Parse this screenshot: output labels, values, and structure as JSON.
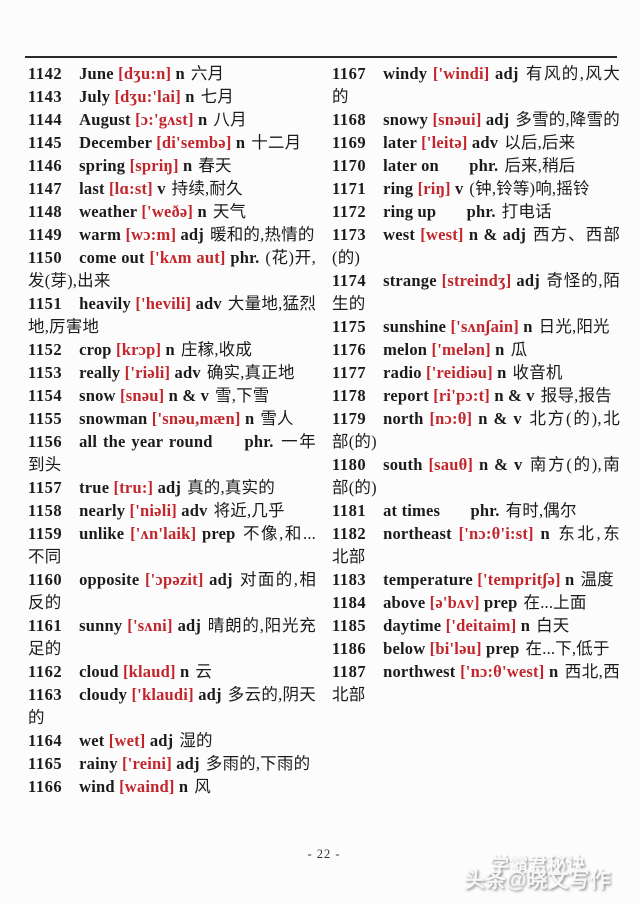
{
  "page": {
    "number_label": "- 22 -",
    "watermark_top": "学霸君秘诀",
    "watermark_bottom": "头条@晓文写作"
  },
  "colors": {
    "phonetic_red": "#c2262c",
    "text_black": "#1b1b1b",
    "rule_black": "#2b2b2b"
  },
  "columns": {
    "left": [
      {
        "num": "1142",
        "word": "June",
        "phon": "[dʒu:n]",
        "pos": "n",
        "def": "六月"
      },
      {
        "num": "1143",
        "word": "July",
        "phon": "[dʒu:'lai]",
        "pos": "n",
        "def": "七月"
      },
      {
        "num": "1144",
        "word": "August",
        "phon": "[ɔ:'gʌst]",
        "pos": "n",
        "def": "八月"
      },
      {
        "num": "1145",
        "word": "December",
        "phon": "[di'sembə]",
        "pos": "n",
        "def": "十二月"
      },
      {
        "num": "1146",
        "word": "spring",
        "phon": "[spriŋ]",
        "pos": "n",
        "def": "春天"
      },
      {
        "num": "1147",
        "word": "last",
        "phon": "[lɑ:st]",
        "pos": "v",
        "def": "持续,耐久"
      },
      {
        "num": "1148",
        "word": "weather",
        "phon": "['weðə]",
        "pos": "n",
        "def": "天气"
      },
      {
        "num": "1149",
        "word": "warm",
        "phon": "[wɔ:m]",
        "pos": "adj",
        "def": "暖和的,热情的"
      },
      {
        "num": "1150",
        "word": "come out",
        "phon": "['kʌm aut]",
        "pos": "phr.",
        "def": "(花)开,发(芽),出来"
      },
      {
        "num": "1151",
        "word": "heavily",
        "phon": "['hevili]",
        "pos": "adv",
        "def": "大量地,猛烈地,厉害地"
      },
      {
        "num": "1152",
        "word": "crop",
        "phon": "[krɔp]",
        "pos": "n",
        "def": "庄稼,收成"
      },
      {
        "num": "1153",
        "word": "really",
        "phon": "['riəli]",
        "pos": "adv",
        "def": "确实,真正地"
      },
      {
        "num": "1154",
        "word": "snow",
        "phon": "[snəu]",
        "pos": "n & v",
        "def": "雪,下雪"
      },
      {
        "num": "1155",
        "word": "snowman",
        "phon": "['snəu,mæn]",
        "pos": "n",
        "def": "雪人"
      },
      {
        "num": "1156",
        "word": "all the year round",
        "phon": "",
        "pos": "phr.",
        "def": "一年到头"
      },
      {
        "num": "1157",
        "word": "true",
        "phon": "[tru:]",
        "pos": "adj",
        "def": "真的,真实的"
      },
      {
        "num": "1158",
        "word": "nearly",
        "phon": "['niəli]",
        "pos": "adv",
        "def": "将近,几乎"
      },
      {
        "num": "1159",
        "word": "unlike",
        "phon": "['ʌn'laik]",
        "pos": "prep",
        "def": "不像,和...不同"
      },
      {
        "num": "1160",
        "word": "opposite",
        "phon": "['ɔpəzit]",
        "pos": "adj",
        "def": "对面的,相反的"
      },
      {
        "num": "1161",
        "word": "sunny",
        "phon": "['sʌni]",
        "pos": "adj",
        "def": "晴朗的,阳光充足的"
      },
      {
        "num": "1162",
        "word": "cloud",
        "phon": "[klaud]",
        "pos": "n",
        "def": "云"
      },
      {
        "num": "1163",
        "word": "cloudy",
        "phon": "['klaudi]",
        "pos": "adj",
        "def": "多云的,阴天的"
      },
      {
        "num": "1164",
        "word": "wet",
        "phon": "[wet]",
        "pos": "adj",
        "def": "湿的"
      },
      {
        "num": "1165",
        "word": "rainy",
        "phon": "['reini]",
        "pos": "adj",
        "def": "多雨的,下雨的"
      },
      {
        "num": "1166",
        "word": "wind",
        "phon": "[waind]",
        "pos": "n",
        "def": "风"
      }
    ],
    "right": [
      {
        "num": "1167",
        "word": "windy",
        "phon": "['windi]",
        "pos": "adj",
        "def": "有风的,风大的"
      },
      {
        "num": "1168",
        "word": "snowy",
        "phon": "[snəui]",
        "pos": "adj",
        "def": "多雪的,降雪的"
      },
      {
        "num": "1169",
        "word": "later",
        "phon": "['leitə]",
        "pos": "adv",
        "def": "以后,后来"
      },
      {
        "num": "1170",
        "word": "later on",
        "phon": "",
        "pos": "phr.",
        "def": "后来,稍后"
      },
      {
        "num": "1171",
        "word": "ring",
        "phon": "[riŋ]",
        "pos": "v",
        "def": "(钟,铃等)响,摇铃"
      },
      {
        "num": "1172",
        "word": "ring up",
        "phon": "",
        "pos": "phr.",
        "def": "打电话"
      },
      {
        "num": "1173",
        "word": "west",
        "phon": "[west]",
        "pos": "n & adj",
        "def": "西方、西部(的)"
      },
      {
        "num": "1174",
        "word": "strange",
        "phon": "[streindʒ]",
        "pos": "adj",
        "def": "奇怪的,陌生的"
      },
      {
        "num": "1175",
        "word": "sunshine",
        "phon": "['sʌnʃain]",
        "pos": "n",
        "def": "日光,阳光"
      },
      {
        "num": "1176",
        "word": "melon",
        "phon": "['melən]",
        "pos": "n",
        "def": "瓜"
      },
      {
        "num": "1177",
        "word": "radio",
        "phon": "['reidiəu]",
        "pos": "n",
        "def": "收音机"
      },
      {
        "num": "1178",
        "word": "report",
        "phon": "[ri'pɔ:t]",
        "pos": "n & v",
        "def": "报导,报告"
      },
      {
        "num": "1179",
        "word": "north",
        "phon": "[nɔ:θ]",
        "pos": "n & v",
        "def": "北方(的),北部(的)"
      },
      {
        "num": "1180",
        "word": "south",
        "phon": "[sauθ]",
        "pos": "n & v",
        "def": "南方(的),南部(的)"
      },
      {
        "num": "1181",
        "word": "at times",
        "phon": "",
        "pos": "phr.",
        "def": "有时,偶尔"
      },
      {
        "num": "1182",
        "word": "northeast",
        "phon": "['nɔ:θ'i:st]",
        "pos": "n",
        "def": "东北,东北部"
      },
      {
        "num": "1183",
        "word": "temperature",
        "phon": "['tempritʃə]",
        "pos": "n",
        "def": "温度"
      },
      {
        "num": "1184",
        "word": "above",
        "phon": "[ə'bʌv]",
        "pos": "prep",
        "def": "在...上面"
      },
      {
        "num": "1185",
        "word": "daytime",
        "phon": "['deitaim]",
        "pos": "n",
        "def": "白天"
      },
      {
        "num": "1186",
        "word": "below",
        "phon": "[bi'ləu]",
        "pos": "prep",
        "def": "在...下,低于"
      },
      {
        "num": "1187",
        "word": "northwest",
        "phon": "['nɔ:θ'west]",
        "pos": "n",
        "def": "西北,西北部"
      }
    ]
  }
}
